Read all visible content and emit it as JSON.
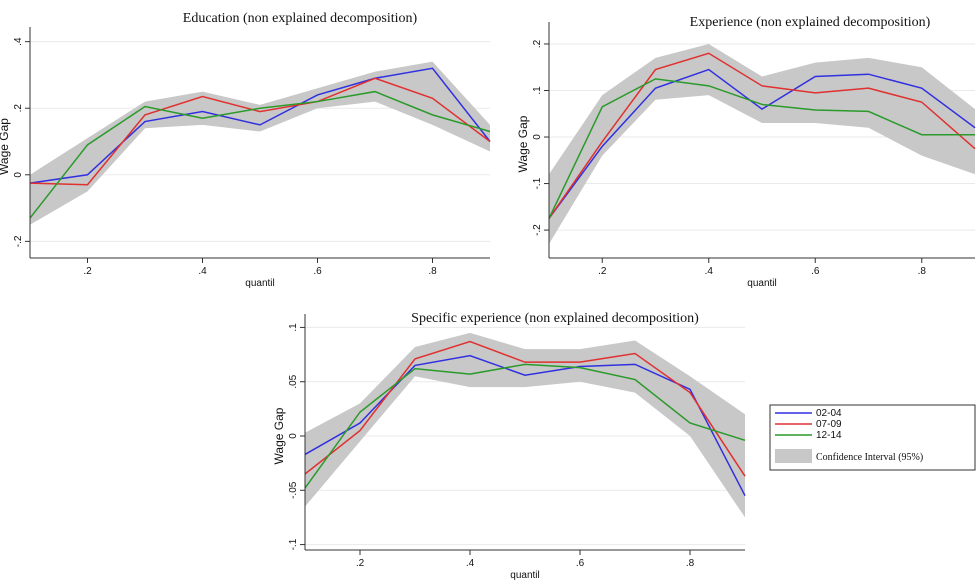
{
  "chart_data": [
    {
      "type": "line",
      "title": "Education (non explained decomposition)",
      "y_label": "Wage Gap",
      "x_label": "quantil",
      "x": [
        0.1,
        0.2,
        0.3,
        0.4,
        0.5,
        0.6,
        0.7,
        0.8,
        0.9
      ],
      "xlim": [
        0.1,
        0.9
      ],
      "ylim": [
        -0.25,
        0.42
      ],
      "xticks": [
        {
          "value": 0.2,
          "label": ".2"
        },
        {
          "value": 0.4,
          "label": ".4"
        },
        {
          "value": 0.6,
          "label": ".6"
        },
        {
          "value": 0.8,
          "label": ".8"
        }
      ],
      "yticks": [
        {
          "value": -0.2,
          "label": "-.2"
        },
        0,
        {
          "value": 0.2,
          "label": ".2"
        },
        {
          "value": 0.4,
          "label": ".4"
        }
      ],
      "band": {
        "color": "#c8c8c8",
        "lower": [
          -0.15,
          -0.05,
          0.14,
          0.15,
          0.13,
          0.2,
          0.22,
          0.15,
          0.07
        ],
        "upper": [
          0.0,
          0.11,
          0.22,
          0.25,
          0.21,
          0.26,
          0.31,
          0.34,
          0.15
        ]
      },
      "series": [
        {
          "color": "#3030e0",
          "values": [
            -0.025,
            0.0,
            0.16,
            0.19,
            0.15,
            0.24,
            0.29,
            0.32,
            0.1
          ]
        },
        {
          "color": "#e03030",
          "values": [
            -0.025,
            -0.03,
            0.18,
            0.235,
            0.19,
            0.22,
            0.29,
            0.23,
            0.1
          ]
        },
        {
          "color": "#2a9a2a",
          "values": [
            -0.13,
            0.09,
            0.205,
            0.17,
            0.2,
            0.22,
            0.25,
            0.18,
            0.13
          ]
        }
      ]
    },
    {
      "type": "line",
      "title": "Experience (non explained decomposition)",
      "y_label": "Wage Gap",
      "x_label": "quantil",
      "x": [
        0.1,
        0.2,
        0.3,
        0.4,
        0.5,
        0.6,
        0.7,
        0.8,
        0.9
      ],
      "xlim": [
        0.1,
        0.9
      ],
      "ylim": [
        -0.26,
        0.23
      ],
      "xticks": [
        {
          "value": 0.2,
          "label": ".2"
        },
        {
          "value": 0.4,
          "label": ".4"
        },
        {
          "value": 0.6,
          "label": ".6"
        },
        {
          "value": 0.8,
          "label": ".8"
        }
      ],
      "yticks": [
        {
          "value": -0.2,
          "label": "-.2"
        },
        {
          "value": -0.1,
          "label": "-.1"
        },
        0,
        {
          "value": 0.1,
          "label": ".1"
        },
        {
          "value": 0.2,
          "label": ".2"
        }
      ],
      "band": {
        "color": "#c8c8c8",
        "lower": [
          -0.23,
          -0.04,
          0.08,
          0.09,
          0.03,
          0.03,
          0.02,
          -0.04,
          -0.08
        ],
        "upper": [
          -0.08,
          0.09,
          0.17,
          0.2,
          0.13,
          0.16,
          0.17,
          0.15,
          0.06
        ]
      },
      "series": [
        {
          "color": "#3030e0",
          "values": [
            -0.175,
            -0.02,
            0.105,
            0.145,
            0.06,
            0.13,
            0.135,
            0.105,
            0.02
          ]
        },
        {
          "color": "#e03030",
          "values": [
            -0.175,
            -0.01,
            0.145,
            0.18,
            0.11,
            0.095,
            0.105,
            0.075,
            -0.025
          ]
        },
        {
          "color": "#2a9a2a",
          "values": [
            -0.175,
            0.065,
            0.125,
            0.11,
            0.07,
            0.058,
            0.055,
            0.005,
            0.005
          ]
        }
      ]
    },
    {
      "type": "line",
      "title": "Specific experience (non explained decomposition)",
      "y_label": "Wage Gap",
      "x_label": "quantil",
      "x": [
        0.1,
        0.2,
        0.3,
        0.4,
        0.5,
        0.6,
        0.7,
        0.8,
        0.9
      ],
      "xlim": [
        0.1,
        0.9
      ],
      "ylim": [
        -0.105,
        0.105
      ],
      "xticks": [
        {
          "value": 0.2,
          "label": ".2"
        },
        {
          "value": 0.4,
          "label": ".4"
        },
        {
          "value": 0.6,
          "label": ".6"
        },
        {
          "value": 0.8,
          "label": ".8"
        }
      ],
      "yticks": [
        {
          "value": -0.1,
          "label": "-.1"
        },
        {
          "value": -0.05,
          "label": "-.05"
        },
        0,
        {
          "value": 0.05,
          "label": ".05"
        },
        {
          "value": 0.1,
          "label": ".1"
        }
      ],
      "band": {
        "name": "Confidence Interval (95%)",
        "color": "#c8c8c8",
        "lower": [
          -0.065,
          -0.005,
          0.055,
          0.045,
          0.045,
          0.05,
          0.04,
          0.0,
          -0.075
        ],
        "upper": [
          0.003,
          0.03,
          0.082,
          0.095,
          0.08,
          0.08,
          0.088,
          0.055,
          0.02
        ]
      },
      "series": [
        {
          "name": "02-04",
          "color": "#3030e0",
          "values": [
            -0.017,
            0.012,
            0.065,
            0.074,
            0.056,
            0.064,
            0.066,
            0.043,
            -0.055
          ]
        },
        {
          "name": "07-09",
          "color": "#e03030",
          "values": [
            -0.035,
            0.005,
            0.071,
            0.087,
            0.068,
            0.068,
            0.076,
            0.04,
            -0.037
          ]
        },
        {
          "name": "12-14",
          "color": "#2a9a2a",
          "values": [
            -0.048,
            0.022,
            0.062,
            0.057,
            0.066,
            0.063,
            0.052,
            0.012,
            -0.004
          ]
        }
      ]
    }
  ]
}
